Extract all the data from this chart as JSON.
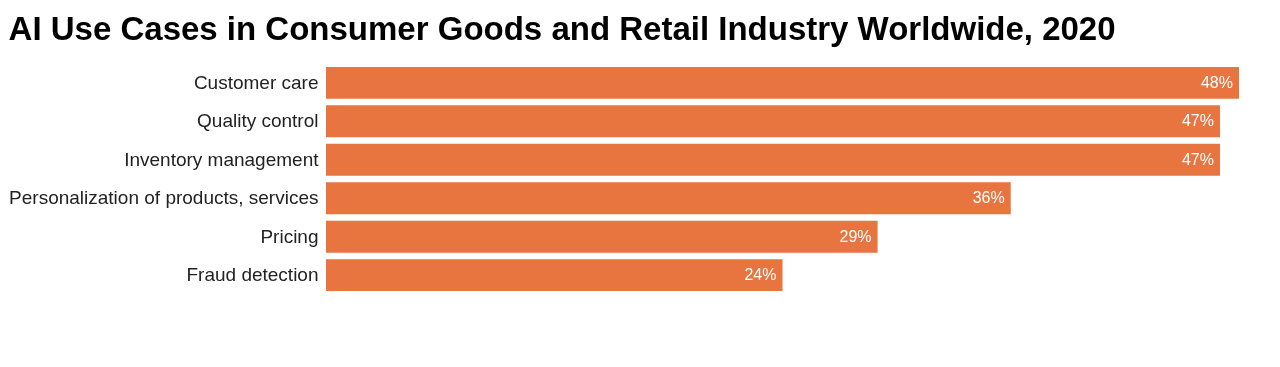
{
  "chart_data": {
    "type": "bar",
    "orientation": "horizontal",
    "title": "AI Use Cases in Consumer Goods and Retail Industry Worldwide, 2020",
    "categories": [
      "Customer care",
      "Quality control",
      "Inventory management",
      "Personalization of products, services",
      "Pricing",
      "Fraud detection"
    ],
    "values": [
      48,
      47,
      47,
      36,
      29,
      24
    ],
    "value_labels": [
      "48%",
      "47%",
      "47%",
      "36%",
      "29%",
      "24%"
    ],
    "color": "#e8743f",
    "grid": false
  }
}
